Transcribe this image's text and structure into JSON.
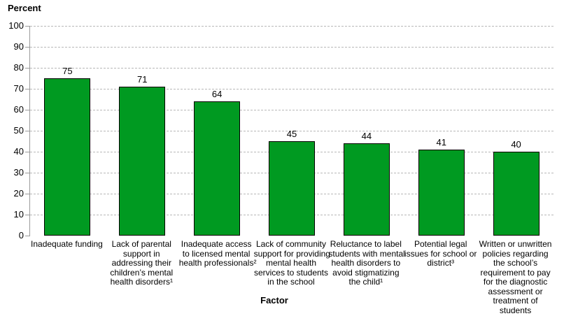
{
  "chart_data": {
    "type": "bar",
    "title": "",
    "ylabel": "Percent",
    "xlabel": "Factor",
    "categories": [
      "Inadequate funding",
      "Lack of parental\nsupport in\naddressing their\nchildren’s mental\nhealth disorders¹",
      "Inadequate access\nto licensed mental\nhealth professionals²",
      "Lack of community\nsupport for providing\nmental health\nservices to students\nin the school",
      "Reluctance to label\nstudents with mental\nhealth disorders to\navoid stigmatizing\nthe child¹",
      "Potential legal\nissues for school or\ndistrict³",
      "Written or unwritten\npolicies regarding\nthe school’s\nrequirement to pay\nfor the diagnostic\nassessment or\ntreatment of\nstudents"
    ],
    "values": [
      75,
      71,
      64,
      45,
      44,
      41,
      40
    ],
    "ylim": [
      0,
      100
    ],
    "ytick_step": 10,
    "yticks": [
      "100",
      "90",
      "80",
      "70",
      "60",
      "50",
      "40",
      "30",
      "20",
      "10",
      "0"
    ],
    "grid": "horizontal dashed",
    "legend": "none",
    "value_labels_shown": true,
    "bar_color": "#009A21",
    "bar_border_color": "#000000",
    "axis_color": "#9a9a9a",
    "gridline_color": "#b8b8b8"
  }
}
